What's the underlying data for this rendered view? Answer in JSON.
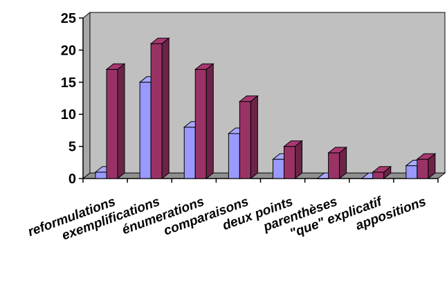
{
  "chart_data": {
    "type": "bar",
    "style": "3d-clustered-column",
    "categories": [
      "reformulations",
      "exemplifications",
      "énumerations",
      "comparaisons",
      "deux points",
      "parenthèses",
      "\"que\" explicatif",
      "appositions"
    ],
    "series": [
      {
        "values": [
          1,
          15,
          8,
          7,
          3,
          0,
          0,
          2
        ],
        "color": "#9999ff"
      },
      {
        "values": [
          17,
          21,
          17,
          12,
          5,
          4,
          1,
          3
        ],
        "color": "#993366"
      }
    ],
    "yticks": [
      0,
      5,
      10,
      15,
      20,
      25
    ],
    "ylim": [
      0,
      25
    ],
    "grid": false,
    "legend": "none",
    "plot_background": "#c0c0c0"
  }
}
